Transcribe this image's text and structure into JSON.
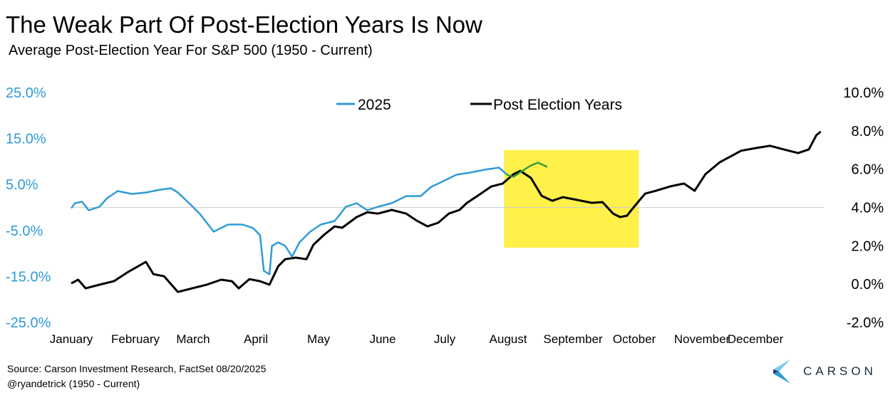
{
  "chart_data": {
    "type": "line",
    "title": "The Weak Part Of Post-Election Years Is Now",
    "subtitle": "Average Post-Election Year For S&P 500 (1950 - Current)",
    "x_unit": "months elapsed in year",
    "x_ticks": [
      "January",
      "February",
      "March",
      "April",
      "May",
      "June",
      "July",
      "August",
      "September",
      "October",
      "November",
      "December"
    ],
    "y_left": {
      "ticks": [
        "25.0%",
        "15.0%",
        "5.0%",
        "-5.0%",
        "-15.0%",
        "-25.0%"
      ],
      "range": [
        -25,
        25
      ],
      "color": "#2e9bd6"
    },
    "y_right": {
      "ticks": [
        "10.0%",
        "8.0%",
        "6.0%",
        "4.0%",
        "2.0%",
        "0.0%",
        "-2.0%"
      ],
      "range": [
        -2,
        10
      ],
      "color": "#000000"
    },
    "legend": {
      "position": "top-center",
      "items": [
        "2025",
        "Post Election Years"
      ]
    },
    "highlight": {
      "x": [
        6.9,
        9.05
      ],
      "y_right": [
        1.9,
        7.0
      ],
      "color": "#fff04a"
    },
    "series": [
      {
        "name": "2025",
        "axis": "left",
        "color": "#2e9bd6",
        "recent_color": "#3a9a3a",
        "x": [
          0,
          0.06,
          0.17,
          0.28,
          0.45,
          0.57,
          0.74,
          0.97,
          1.19,
          1.42,
          1.59,
          1.7,
          1.88,
          2.05,
          2.27,
          2.5,
          2.73,
          2.9,
          3.01,
          3.07,
          3.16,
          3.2,
          3.3,
          3.41,
          3.52,
          3.64,
          3.81,
          3.98,
          4.2,
          4.38,
          4.55,
          4.72,
          4.89,
          5.11,
          5.34,
          5.57,
          5.74,
          5.91,
          6.14,
          6.36,
          6.59,
          6.82,
          6.95
        ],
        "values": [
          -0.15,
          0.93,
          1.24,
          -0.62,
          0.15,
          2.01,
          3.56,
          2.94,
          3.25,
          3.87,
          4.18,
          3.25,
          0.93,
          -1.39,
          -5.26,
          -3.72,
          -3.72,
          -4.49,
          -6.04,
          -13.78,
          -14.55,
          -8.36,
          -7.59,
          -8.36,
          -10.68,
          -7.59,
          -5.26,
          -3.72,
          -2.94,
          0.15,
          0.93,
          -0.62,
          0.15,
          0.93,
          2.48,
          2.48,
          4.49,
          5.57,
          7.12,
          7.59,
          8.2,
          8.67,
          7.12
        ],
        "recent_x": [
          6.95,
          7.05,
          7.22,
          7.33,
          7.44,
          7.59
        ],
        "recent_values": [
          7.12,
          6.66,
          8.2,
          9.13,
          9.75,
          8.82
        ]
      },
      {
        "name": "Post Election Years",
        "axis": "right",
        "color": "#000000",
        "x": [
          0,
          0.11,
          0.23,
          0.45,
          0.68,
          0.91,
          1.19,
          1.31,
          1.48,
          1.7,
          1.93,
          2.16,
          2.39,
          2.56,
          2.67,
          2.84,
          3.01,
          3.16,
          3.3,
          3.41,
          3.58,
          3.75,
          3.86,
          4.03,
          4.2,
          4.32,
          4.55,
          4.72,
          4.89,
          5.11,
          5.34,
          5.51,
          5.68,
          5.85,
          6.02,
          6.19,
          6.31,
          6.48,
          6.7,
          6.88,
          7.05,
          7.16,
          7.33,
          7.5,
          7.67,
          7.84,
          8.07,
          8.3,
          8.47,
          8.64,
          8.75,
          8.86,
          8.98,
          9.15,
          9.32,
          9.55,
          9.77,
          9.94,
          10.11,
          10.34,
          10.51,
          10.68,
          10.91,
          11.14,
          11.36,
          11.59,
          11.76,
          11.88,
          11.95
        ],
        "values": [
          0.04,
          0.23,
          -0.22,
          -0.03,
          0.15,
          0.64,
          1.16,
          0.52,
          0.41,
          -0.41,
          -0.22,
          -0.03,
          0.23,
          0.15,
          -0.22,
          0.26,
          0.15,
          -0.03,
          0.93,
          1.3,
          1.38,
          1.3,
          2.05,
          2.57,
          3.01,
          2.94,
          3.5,
          3.75,
          3.68,
          3.87,
          3.68,
          3.31,
          3.01,
          3.2,
          3.68,
          3.87,
          4.24,
          4.61,
          5.1,
          5.25,
          5.73,
          5.91,
          5.54,
          4.61,
          4.35,
          4.54,
          4.39,
          4.24,
          4.28,
          3.68,
          3.5,
          3.57,
          4.06,
          4.72,
          4.87,
          5.1,
          5.25,
          4.87,
          5.73,
          6.36,
          6.66,
          6.96,
          7.1,
          7.22,
          7.03,
          6.84,
          7.03,
          7.77,
          7.96
        ]
      }
    ]
  },
  "footer": {
    "source": "Source: Carson Investment Research, FactSet 08/20/2025",
    "handle": "@ryandetrick      (1950 - Current)",
    "logo": "CARSON"
  }
}
